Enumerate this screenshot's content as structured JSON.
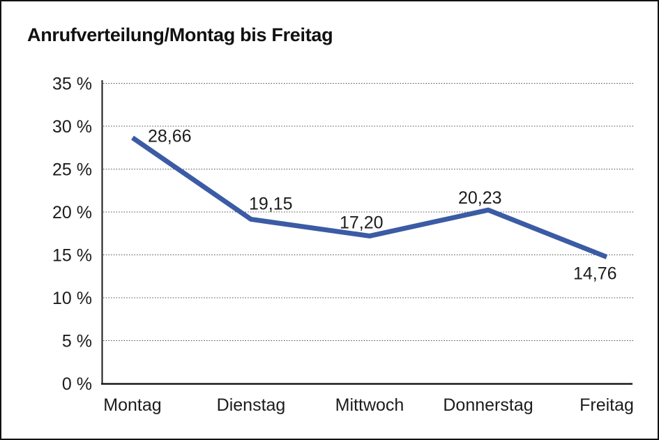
{
  "page": {
    "title": "Anrufverteilung/Montag bis Freitag"
  },
  "chart_data": {
    "type": "line",
    "title": "Anrufverteilung/Montag bis Freitag",
    "categories": [
      "Montag",
      "Dienstag",
      "Mittwoch",
      "Donnerstag",
      "Freitag"
    ],
    "series": [
      {
        "name": "Anrufverteilung",
        "color": "#3B5BA5",
        "values": [
          28.66,
          19.15,
          17.2,
          20.23,
          14.76
        ],
        "point_labels": [
          "28,66",
          "19,15",
          "17,20",
          "20,23",
          "14,76"
        ]
      }
    ],
    "xlabel": "",
    "ylabel": "",
    "ylim": [
      0,
      35
    ],
    "y_ticks": [
      {
        "value": 0,
        "label": "0 %"
      },
      {
        "value": 5,
        "label": "5 %"
      },
      {
        "value": 10,
        "label": "10 %"
      },
      {
        "value": 15,
        "label": "15 %"
      },
      {
        "value": 20,
        "label": "20 %"
      },
      {
        "value": 25,
        "label": "25 %"
      },
      {
        "value": 30,
        "label": "30 %"
      },
      {
        "value": 35,
        "label": "35 %"
      }
    ],
    "grid": "horizontal-dotted",
    "legend": "none",
    "colors": {
      "line": "#3B5BA5",
      "axis": "#1a1a1a",
      "grid": "#4a4a4a",
      "text": "#1c1c1c",
      "background": "#ffffff"
    }
  }
}
